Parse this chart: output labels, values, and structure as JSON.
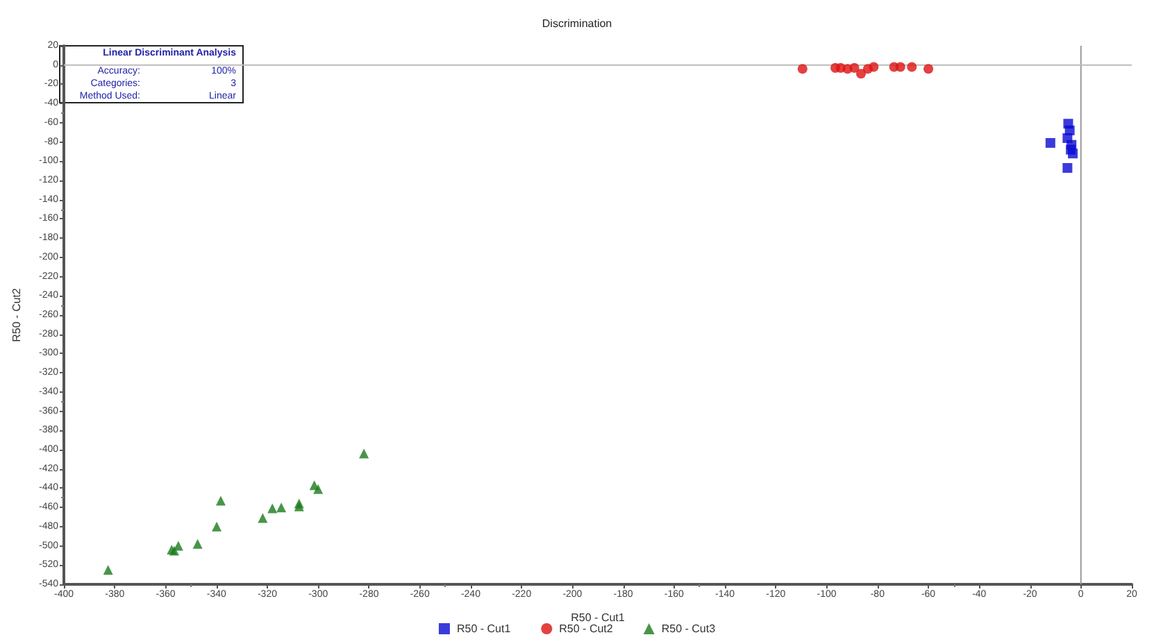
{
  "chart_data": {
    "type": "scatter",
    "title": "Discrimination",
    "xlabel": "R50 - Cut1",
    "ylabel": "R50 - Cut2",
    "annotations": [
      "Linear Discriminant Analysis",
      "Accuracy:",
      "100%",
      "Categories:",
      "3",
      "Method Used:",
      "Linear"
    ],
    "xlim": [
      -400,
      20
    ],
    "xticks": [
      -400,
      -380,
      -360,
      -340,
      -320,
      -300,
      -280,
      -260,
      -240,
      -220,
      -200,
      -180,
      -160,
      -140,
      -120,
      -100,
      -80,
      -60,
      -40,
      -20,
      0,
      20
    ],
    "ylim": [
      -540,
      20
    ],
    "yticks": [
      -540,
      -520,
      -500,
      -480,
      -460,
      -440,
      -420,
      -400,
      -380,
      -360,
      -340,
      -320,
      -300,
      -280,
      -260,
      -240,
      -220,
      -200,
      -180,
      -160,
      -140,
      -120,
      -100,
      -80,
      -60,
      -40,
      -20,
      0,
      20
    ],
    "grid": false,
    "legend": "bottom",
    "ref_lines": [
      {
        "axis": "x",
        "value": 0,
        "label": null,
        "color": "#999999"
      },
      {
        "axis": "y",
        "value": 0,
        "label": null,
        "color": "#bbbbbb"
      }
    ],
    "series": [
      {
        "name": "R50 - Cut1",
        "color": "#0a0ad2",
        "marker": "square",
        "x": [
          -12,
          -5,
          -4.4,
          -5.3,
          -3.7,
          -3.2,
          -5.3,
          -4
        ],
        "values": [
          -81,
          -61,
          -68,
          -76,
          -83,
          -92,
          -107,
          -88
        ]
      },
      {
        "name": "R50 - Cut2",
        "color": "#dd1111",
        "marker": "circle",
        "x": [
          -109.5,
          -96.6,
          -94.5,
          -91.8,
          -89.1,
          -86.5,
          -83.8,
          -81.5,
          -73.5,
          -71,
          -66.5,
          -60
        ],
        "values": [
          -4,
          -3,
          -3,
          -4,
          -3,
          -9,
          -4,
          -2,
          -2,
          -2,
          -2,
          -4
        ]
      },
      {
        "name": "R50 - Cut3",
        "color": "#1a7a1a",
        "marker": "triangle",
        "x": [
          -382.6,
          -357.6,
          -356.6,
          -355,
          -347.4,
          -339.9,
          -338.3,
          -321.8,
          -318,
          -314.5,
          -307.5,
          -307.5,
          -301.5,
          -300,
          -282
        ],
        "values": [
          -525,
          -504,
          -505,
          -500,
          -498,
          -480,
          -453,
          -471,
          -461,
          -460,
          -459,
          -456,
          -437,
          -441,
          -404
        ]
      }
    ]
  }
}
